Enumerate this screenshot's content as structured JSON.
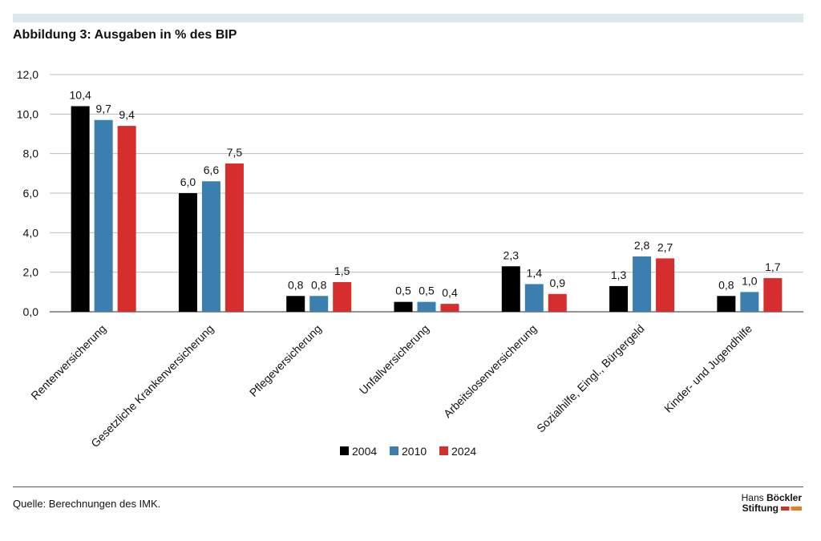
{
  "header": {
    "title": "Abbildung 3: Ausgaben in % des BIP"
  },
  "footer": {
    "source": "Quelle: Berechnungen des IMK.",
    "logo_line1_a": "Hans ",
    "logo_line1_b": "Böckler",
    "logo_line2": "Stiftung"
  },
  "chart_data": {
    "type": "bar",
    "title": "Abbildung 3: Ausgaben in % des BIP",
    "xlabel": "",
    "ylabel": "",
    "ylim": [
      0,
      12
    ],
    "yticks": [
      "0,0",
      "2,0",
      "4,0",
      "6,0",
      "8,0",
      "10,0",
      "12,0"
    ],
    "grid": true,
    "legend": "bottom-center",
    "categories": [
      "Rentenversicherung",
      "Gesetzliche Krankenversicherung",
      "Pflegeversicherung",
      "Unfallversicherung",
      "Arbeitslosenversicherung",
      "Sozialhilfe, Eingl., Bürgergeld",
      "Kinder- und Jugendhilfe"
    ],
    "series": [
      {
        "name": "2004",
        "color": "#000000",
        "values": [
          10.4,
          6.0,
          0.8,
          0.5,
          2.3,
          1.3,
          0.8
        ],
        "labels": [
          "10,4",
          "6,0",
          "0,8",
          "0,5",
          "2,3",
          "1,3",
          "0,8"
        ]
      },
      {
        "name": "2010",
        "color": "#3a7fb0",
        "values": [
          9.7,
          6.6,
          0.8,
          0.5,
          1.4,
          2.8,
          1.0
        ],
        "labels": [
          "9,7",
          "6,6",
          "0,8",
          "0,5",
          "1,4",
          "2,8",
          "1,0"
        ]
      },
      {
        "name": "2024",
        "color": "#d62d2d",
        "values": [
          9.4,
          7.5,
          1.5,
          0.4,
          0.9,
          2.7,
          1.7
        ],
        "labels": [
          "9,4",
          "7,5",
          "1,5",
          "0,4",
          "0,9",
          "2,7",
          "1,7"
        ]
      }
    ]
  }
}
